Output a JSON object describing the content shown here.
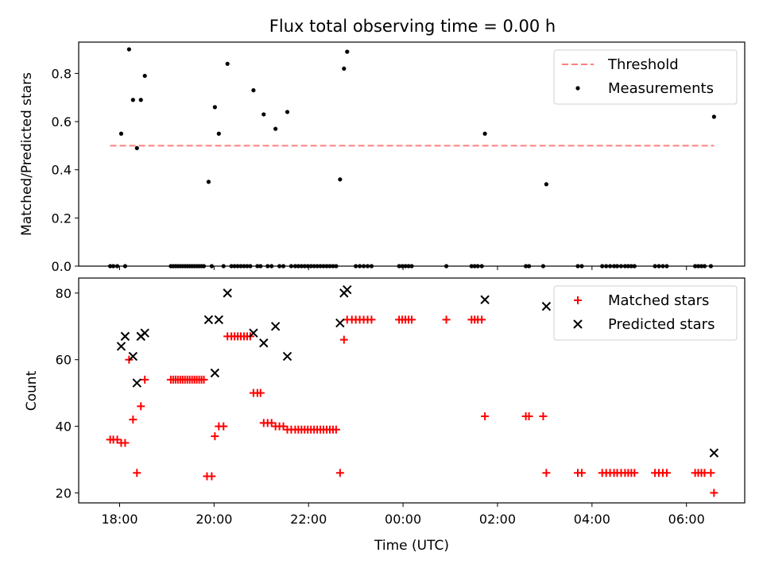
{
  "chart_data": [
    {
      "type": "scatter",
      "title": "Flux total observing time = 0.00 h",
      "xlabel": "",
      "ylabel": "Matched/Predicted stars",
      "xlim": [
        "17:08",
        "07:14"
      ],
      "ylim": [
        0,
        0.93
      ],
      "yticks": [
        "0.0",
        "0.2",
        "0.4",
        "0.6",
        "0.8"
      ],
      "ytick_values": [
        0,
        0.2,
        0.4,
        0.6,
        0.8
      ],
      "xticks": [
        "18:00",
        "20:00",
        "22:00",
        "00:00",
        "02:00",
        "04:00",
        "06:00"
      ],
      "legend": {
        "position": "upper right",
        "items": [
          "Threshold",
          "Measurements"
        ]
      },
      "series": [
        {
          "name": "Threshold",
          "kind": "dashed-line",
          "color": "#ff7f7f",
          "points": [
            [
              "17:48",
              0.5
            ],
            [
              "06:35",
              0.5
            ]
          ]
        },
        {
          "name": "Measurements",
          "kind": "dot",
          "color": "#000000",
          "points": [
            [
              "17:48",
              0
            ],
            [
              "17:52",
              0
            ],
            [
              "17:57",
              0
            ],
            [
              "18:02",
              0.55
            ],
            [
              "18:07",
              0
            ],
            [
              "18:12",
              0.9
            ],
            [
              "18:17",
              0.69
            ],
            [
              "18:22",
              0.49
            ],
            [
              "18:27",
              0.69
            ],
            [
              "18:32",
              0.79
            ],
            [
              "19:05",
              0
            ],
            [
              "19:08",
              0
            ],
            [
              "19:11",
              0
            ],
            [
              "19:14",
              0
            ],
            [
              "19:17",
              0
            ],
            [
              "19:20",
              0
            ],
            [
              "19:23",
              0
            ],
            [
              "19:26",
              0
            ],
            [
              "19:29",
              0
            ],
            [
              "19:32",
              0
            ],
            [
              "19:35",
              0
            ],
            [
              "19:38",
              0
            ],
            [
              "19:41",
              0
            ],
            [
              "19:44",
              0
            ],
            [
              "19:47",
              0
            ],
            [
              "19:53",
              0.35
            ],
            [
              "19:57",
              0
            ],
            [
              "20:01",
              0.66
            ],
            [
              "20:06",
              0.55
            ],
            [
              "20:12",
              0
            ],
            [
              "20:17",
              0.84
            ],
            [
              "20:22",
              0
            ],
            [
              "20:26",
              0
            ],
            [
              "20:30",
              0
            ],
            [
              "20:34",
              0
            ],
            [
              "20:38",
              0
            ],
            [
              "20:42",
              0
            ],
            [
              "20:46",
              0
            ],
            [
              "20:50",
              0.73
            ],
            [
              "20:55",
              0
            ],
            [
              "20:59",
              0
            ],
            [
              "21:03",
              0.63
            ],
            [
              "21:08",
              0
            ],
            [
              "21:13",
              0
            ],
            [
              "21:18",
              0.57
            ],
            [
              "21:23",
              0
            ],
            [
              "21:28",
              0
            ],
            [
              "21:33",
              0.64
            ],
            [
              "21:38",
              0
            ],
            [
              "21:43",
              0
            ],
            [
              "21:47",
              0
            ],
            [
              "21:51",
              0
            ],
            [
              "21:55",
              0
            ],
            [
              "21:59",
              0
            ],
            [
              "22:03",
              0
            ],
            [
              "22:07",
              0
            ],
            [
              "22:11",
              0
            ],
            [
              "22:15",
              0
            ],
            [
              "22:19",
              0
            ],
            [
              "22:23",
              0
            ],
            [
              "22:27",
              0
            ],
            [
              "22:31",
              0
            ],
            [
              "22:35",
              0
            ],
            [
              "22:40",
              0.36
            ],
            [
              "22:45",
              0.82
            ],
            [
              "22:49",
              0.89
            ],
            [
              "23:00",
              0
            ],
            [
              "23:05",
              0
            ],
            [
              "23:10",
              0
            ],
            [
              "23:15",
              0
            ],
            [
              "23:20",
              0
            ],
            [
              "23:55",
              0
            ],
            [
              "23:59",
              0
            ],
            [
              "00:03",
              0
            ],
            [
              "00:07",
              0
            ],
            [
              "00:11",
              0
            ],
            [
              "00:55",
              0
            ],
            [
              "01:27",
              0
            ],
            [
              "01:31",
              0
            ],
            [
              "01:35",
              0
            ],
            [
              "01:40",
              0
            ],
            [
              "01:44",
              0.55
            ],
            [
              "02:36",
              0
            ],
            [
              "02:40",
              0
            ],
            [
              "02:58",
              0
            ],
            [
              "03:02",
              0.34
            ],
            [
              "03:42",
              0
            ],
            [
              "03:47",
              0
            ],
            [
              "04:13",
              0
            ],
            [
              "04:18",
              0
            ],
            [
              "04:23",
              0
            ],
            [
              "04:28",
              0
            ],
            [
              "04:32",
              0
            ],
            [
              "04:37",
              0
            ],
            [
              "04:42",
              0
            ],
            [
              "04:46",
              0
            ],
            [
              "04:50",
              0
            ],
            [
              "04:54",
              0
            ],
            [
              "05:20",
              0
            ],
            [
              "05:25",
              0
            ],
            [
              "05:30",
              0
            ],
            [
              "05:35",
              0
            ],
            [
              "06:11",
              0
            ],
            [
              "06:15",
              0
            ],
            [
              "06:19",
              0
            ],
            [
              "06:23",
              0
            ],
            [
              "06:31",
              0
            ],
            [
              "06:35",
              0.62
            ]
          ]
        }
      ]
    },
    {
      "type": "scatter",
      "title": "",
      "xlabel": "Time (UTC)",
      "ylabel": "Count",
      "xlim": [
        "17:08",
        "07:14"
      ],
      "ylim": [
        17,
        84.5
      ],
      "yticks": [
        "20",
        "40",
        "60",
        "80"
      ],
      "ytick_values": [
        20,
        40,
        60,
        80
      ],
      "xticks": [
        "18:00",
        "20:00",
        "22:00",
        "00:00",
        "02:00",
        "04:00",
        "06:00"
      ],
      "legend": {
        "position": "upper right",
        "items": [
          "Matched stars",
          "Predicted stars"
        ]
      },
      "series": [
        {
          "name": "Matched stars",
          "kind": "plus",
          "color": "#ff0000",
          "points": [
            [
              "17:48",
              36
            ],
            [
              "17:52",
              36
            ],
            [
              "17:57",
              36
            ],
            [
              "18:02",
              35
            ],
            [
              "18:07",
              35
            ],
            [
              "18:12",
              60
            ],
            [
              "18:17",
              42
            ],
            [
              "18:22",
              26
            ],
            [
              "18:27",
              46
            ],
            [
              "18:32",
              54
            ],
            [
              "19:05",
              54
            ],
            [
              "19:08",
              54
            ],
            [
              "19:11",
              54
            ],
            [
              "19:14",
              54
            ],
            [
              "19:17",
              54
            ],
            [
              "19:20",
              54
            ],
            [
              "19:23",
              54
            ],
            [
              "19:26",
              54
            ],
            [
              "19:29",
              54
            ],
            [
              "19:32",
              54
            ],
            [
              "19:35",
              54
            ],
            [
              "19:38",
              54
            ],
            [
              "19:41",
              54
            ],
            [
              "19:44",
              54
            ],
            [
              "19:47",
              54
            ],
            [
              "19:51",
              25
            ],
            [
              "19:57",
              25
            ],
            [
              "20:01",
              37
            ],
            [
              "20:06",
              40
            ],
            [
              "20:12",
              40
            ],
            [
              "20:17",
              67
            ],
            [
              "20:22",
              67
            ],
            [
              "20:26",
              67
            ],
            [
              "20:30",
              67
            ],
            [
              "20:34",
              67
            ],
            [
              "20:38",
              67
            ],
            [
              "20:42",
              67
            ],
            [
              "20:46",
              67
            ],
            [
              "20:50",
              50
            ],
            [
              "20:55",
              50
            ],
            [
              "20:59",
              50
            ],
            [
              "21:03",
              41
            ],
            [
              "21:08",
              41
            ],
            [
              "21:13",
              41
            ],
            [
              "21:18",
              40
            ],
            [
              "21:23",
              40
            ],
            [
              "21:28",
              40
            ],
            [
              "21:33",
              39
            ],
            [
              "21:38",
              39
            ],
            [
              "21:43",
              39
            ],
            [
              "21:47",
              39
            ],
            [
              "21:51",
              39
            ],
            [
              "21:55",
              39
            ],
            [
              "21:59",
              39
            ],
            [
              "22:03",
              39
            ],
            [
              "22:07",
              39
            ],
            [
              "22:11",
              39
            ],
            [
              "22:15",
              39
            ],
            [
              "22:19",
              39
            ],
            [
              "22:23",
              39
            ],
            [
              "22:27",
              39
            ],
            [
              "22:31",
              39
            ],
            [
              "22:35",
              39
            ],
            [
              "22:40",
              26
            ],
            [
              "22:45",
              66
            ],
            [
              "22:49",
              72
            ],
            [
              "22:55",
              72
            ],
            [
              "23:00",
              72
            ],
            [
              "23:05",
              72
            ],
            [
              "23:10",
              72
            ],
            [
              "23:15",
              72
            ],
            [
              "23:20",
              72
            ],
            [
              "23:55",
              72
            ],
            [
              "23:59",
              72
            ],
            [
              "00:03",
              72
            ],
            [
              "00:07",
              72
            ],
            [
              "00:11",
              72
            ],
            [
              "00:55",
              72
            ],
            [
              "01:27",
              72
            ],
            [
              "01:31",
              72
            ],
            [
              "01:35",
              72
            ],
            [
              "01:40",
              72
            ],
            [
              "01:44",
              43
            ],
            [
              "02:36",
              43
            ],
            [
              "02:40",
              43
            ],
            [
              "02:58",
              43
            ],
            [
              "03:02",
              26
            ],
            [
              "03:42",
              26
            ],
            [
              "03:47",
              26
            ],
            [
              "04:13",
              26
            ],
            [
              "04:18",
              26
            ],
            [
              "04:23",
              26
            ],
            [
              "04:28",
              26
            ],
            [
              "04:32",
              26
            ],
            [
              "04:37",
              26
            ],
            [
              "04:42",
              26
            ],
            [
              "04:46",
              26
            ],
            [
              "04:50",
              26
            ],
            [
              "04:54",
              26
            ],
            [
              "05:20",
              26
            ],
            [
              "05:25",
              26
            ],
            [
              "05:30",
              26
            ],
            [
              "05:35",
              26
            ],
            [
              "06:11",
              26
            ],
            [
              "06:15",
              26
            ],
            [
              "06:19",
              26
            ],
            [
              "06:23",
              26
            ],
            [
              "06:31",
              26
            ],
            [
              "06:35",
              20
            ]
          ]
        },
        {
          "name": "Predicted stars",
          "kind": "cross",
          "color": "#000000",
          "points": [
            [
              "18:02",
              64
            ],
            [
              "18:07",
              67
            ],
            [
              "18:17",
              61
            ],
            [
              "18:22",
              53
            ],
            [
              "18:27",
              67
            ],
            [
              "18:32",
              68
            ],
            [
              "19:53",
              72
            ],
            [
              "20:01",
              56
            ],
            [
              "20:06",
              72
            ],
            [
              "20:17",
              80
            ],
            [
              "20:50",
              68
            ],
            [
              "21:03",
              65
            ],
            [
              "21:18",
              70
            ],
            [
              "21:33",
              61
            ],
            [
              "22:40",
              71
            ],
            [
              "22:45",
              80
            ],
            [
              "22:49",
              81
            ],
            [
              "01:44",
              78
            ],
            [
              "03:02",
              76
            ],
            [
              "06:35",
              32
            ]
          ]
        }
      ]
    }
  ]
}
